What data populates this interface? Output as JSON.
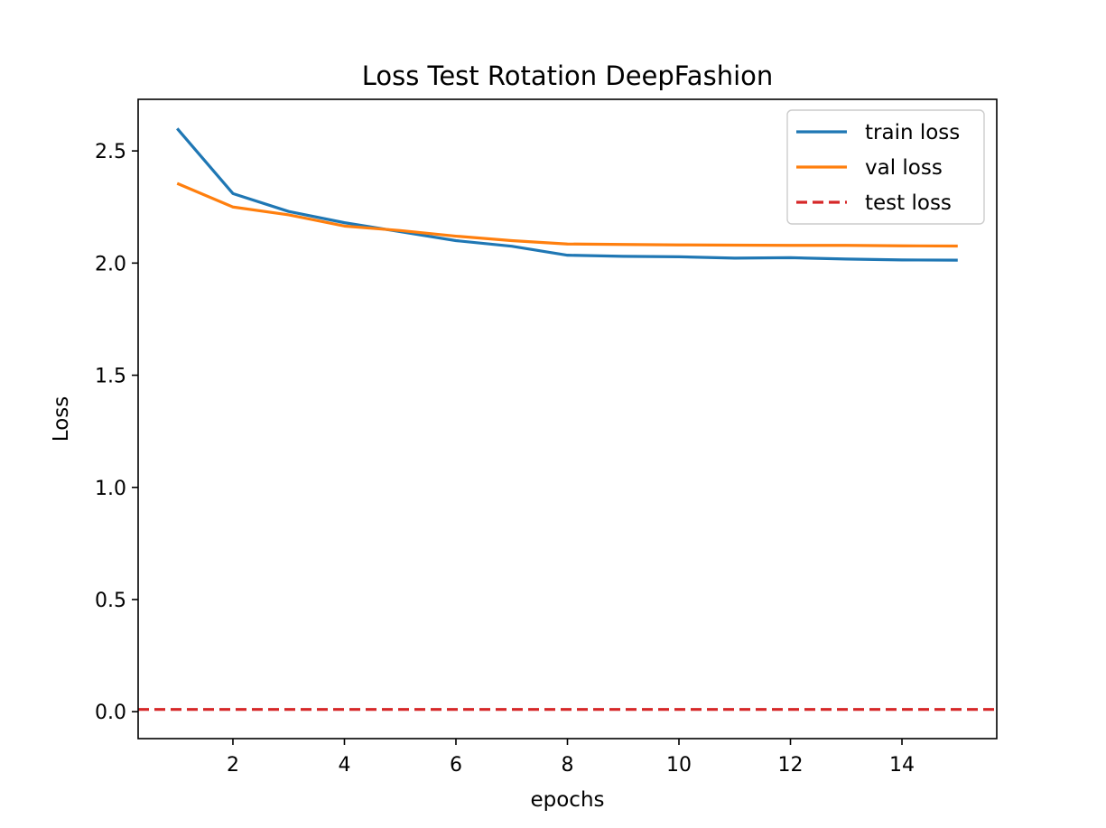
{
  "chart_data": {
    "type": "line",
    "title": "Loss Test Rotation DeepFashion",
    "xlabel": "epochs",
    "ylabel": "Loss",
    "xlim": [
      0.3,
      15.7
    ],
    "ylim": [
      -0.12,
      2.73
    ],
    "xticks": [
      2,
      4,
      6,
      8,
      10,
      12,
      14
    ],
    "yticks": [
      0.0,
      0.5,
      1.0,
      1.5,
      2.0,
      2.5
    ],
    "ytick_labels": [
      "0.0",
      "0.5",
      "1.0",
      "1.5",
      "2.0",
      "2.5"
    ],
    "x": [
      1,
      2,
      3,
      4,
      5,
      6,
      7,
      8,
      9,
      10,
      11,
      12,
      13,
      14,
      15
    ],
    "series": [
      {
        "name": "train loss",
        "color": "#1f77b4",
        "style": "solid",
        "values": [
          2.6,
          2.31,
          2.23,
          2.18,
          2.14,
          2.1,
          2.075,
          2.035,
          2.03,
          2.028,
          2.022,
          2.024,
          2.018,
          2.014,
          2.013
        ]
      },
      {
        "name": "val loss",
        "color": "#ff7f0e",
        "style": "solid",
        "values": [
          2.355,
          2.25,
          2.215,
          2.165,
          2.145,
          2.12,
          2.1,
          2.085,
          2.083,
          2.081,
          2.08,
          2.079,
          2.079,
          2.077,
          2.076
        ]
      },
      {
        "name": "test loss",
        "color": "#d62728",
        "style": "dashed",
        "hline": 0.01
      }
    ],
    "grid": false,
    "legend_position": "top-right"
  }
}
